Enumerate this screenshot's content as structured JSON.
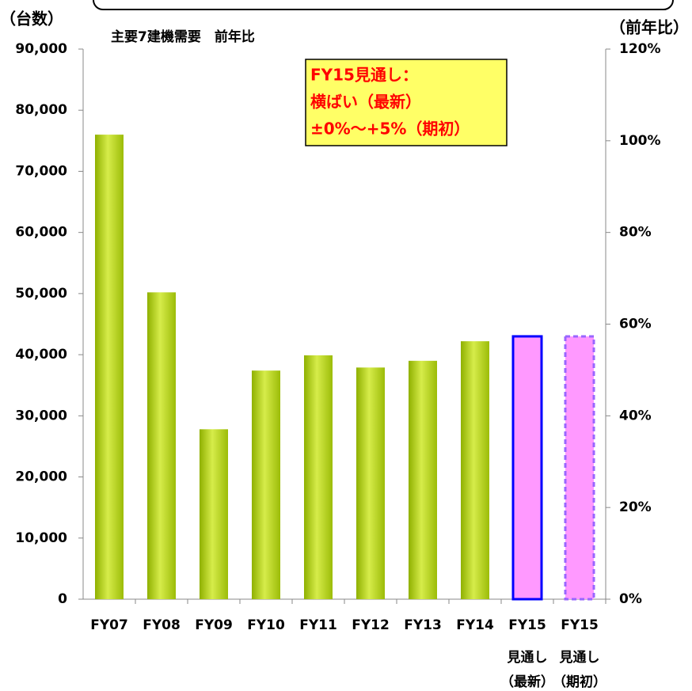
{
  "chart_data": {
    "type": "bar",
    "title": "主要7建機需要　前年比",
    "ylabel": "（台数）",
    "y2label": "（前年比）",
    "annotation": [
      "FY15見通し：",
      "横ばい（最新）",
      "±0%～+5%（期初）"
    ],
    "categories": [
      [
        "FY07"
      ],
      [
        "FY08"
      ],
      [
        "FY09"
      ],
      [
        "FY10"
      ],
      [
        "FY11"
      ],
      [
        "FY12"
      ],
      [
        "FY13"
      ],
      [
        "FY14"
      ],
      [
        "FY15",
        "見通し",
        "（最新）"
      ],
      [
        "FY15",
        "見通し",
        "（期初）"
      ]
    ],
    "values": [
      76000,
      50200,
      27800,
      37400,
      39900,
      37900,
      39000,
      42200,
      43000,
      43000
    ],
    "colors": [
      "#b5d41e",
      "#b5d41e",
      "#b5d41e",
      "#b5d41e",
      "#b5d41e",
      "#b5d41e",
      "#b5d41e",
      "#b5d41e",
      "#ff99ff",
      "#ff99ff"
    ],
    "edgecolors": [
      null,
      null,
      null,
      null,
      null,
      null,
      null,
      null,
      "#0000ff",
      "#9966ff"
    ],
    "linestyles": [
      null,
      null,
      null,
      null,
      null,
      null,
      null,
      null,
      "solid",
      "dashed"
    ],
    "ylim": [
      0,
      90000
    ],
    "yticks": [
      0,
      {
        "value": 10000,
        "label": "10,000"
      },
      {
        "value": 20000,
        "label": "20,000"
      },
      {
        "value": 30000,
        "label": "30,000"
      },
      {
        "value": 40000,
        "label": "40,000"
      },
      {
        "value": 50000,
        "label": "50,000"
      },
      {
        "value": 60000,
        "label": "60,000"
      },
      {
        "value": 70000,
        "label": "70,000"
      },
      {
        "value": 80000,
        "label": "80,000"
      },
      {
        "value": 90000,
        "label": "90,000"
      }
    ],
    "y2lim": [
      0,
      120
    ],
    "y2ticks": [
      {
        "value": 0,
        "label": "0%"
      },
      {
        "value": 20,
        "label": "20%"
      },
      {
        "value": 40,
        "label": "40%"
      },
      {
        "value": 60,
        "label": "60%"
      },
      {
        "value": 80,
        "label": "80%"
      },
      {
        "value": 100,
        "label": "100%"
      },
      {
        "value": 120,
        "label": "120%"
      }
    ],
    "grid": false
  }
}
